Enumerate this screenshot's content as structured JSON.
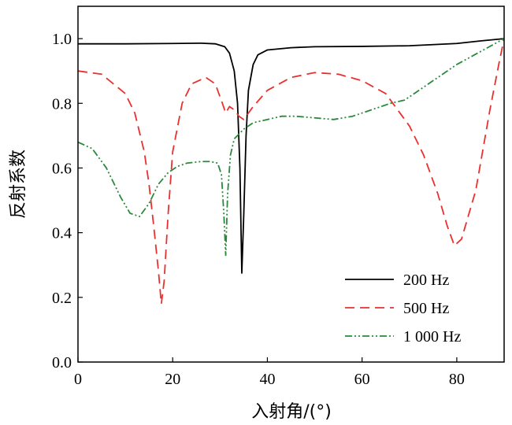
{
  "chart_data": {
    "type": "line",
    "xlabel": "入射角/(°)",
    "ylabel": "反射系数",
    "xlim": [
      0,
      90
    ],
    "ylim": [
      0,
      1.1
    ],
    "x_ticks": [
      0,
      20,
      40,
      60,
      80
    ],
    "x_tick_labels": [
      "0",
      "20",
      "40",
      "60",
      "80"
    ],
    "y_ticks": [
      0,
      0.2,
      0.4,
      0.6,
      0.8,
      1.0
    ],
    "y_tick_labels": [
      "0.0",
      "0.2",
      "0.4",
      "0.6",
      "0.8",
      "1.0"
    ],
    "grid": false,
    "legend_position": "bottom-right",
    "series": [
      {
        "name": "200 Hz",
        "color": "#000000",
        "dash": "solid",
        "x": [
          0,
          10,
          20,
          26,
          29,
          31,
          32,
          33,
          33.7,
          34.2,
          34.6,
          35.0,
          35.5,
          36,
          37,
          38,
          40,
          45,
          50,
          60,
          70,
          80,
          85,
          90
        ],
        "y": [
          0.984,
          0.984,
          0.985,
          0.986,
          0.984,
          0.975,
          0.955,
          0.9,
          0.8,
          0.6,
          0.275,
          0.45,
          0.7,
          0.84,
          0.92,
          0.95,
          0.965,
          0.972,
          0.975,
          0.976,
          0.978,
          0.985,
          0.993,
          1.0
        ]
      },
      {
        "name": "500 Hz",
        "color": "#e8312f",
        "dash": "dashed",
        "x": [
          0,
          5,
          10,
          12,
          14,
          15,
          16,
          17,
          17.6,
          18.2,
          19,
          20,
          22,
          24,
          27,
          29,
          30.5,
          31.2,
          32,
          33,
          34,
          35,
          37,
          40,
          45,
          50,
          55,
          60,
          65,
          70,
          73,
          76,
          78,
          79.5,
          81,
          84,
          87,
          89,
          90
        ],
        "y": [
          0.9,
          0.89,
          0.83,
          0.77,
          0.65,
          0.55,
          0.42,
          0.28,
          0.18,
          0.25,
          0.45,
          0.65,
          0.8,
          0.86,
          0.88,
          0.86,
          0.8,
          0.77,
          0.79,
          0.78,
          0.76,
          0.75,
          0.79,
          0.84,
          0.88,
          0.895,
          0.89,
          0.87,
          0.83,
          0.73,
          0.64,
          0.52,
          0.42,
          0.36,
          0.38,
          0.53,
          0.78,
          0.93,
          1.0
        ]
      },
      {
        "name": "1 000 Hz",
        "color": "#2a8a3a",
        "dash": "dashdot",
        "x": [
          0,
          3,
          6,
          9,
          11,
          13,
          15,
          17,
          19,
          21,
          23,
          26,
          28,
          29.5,
          30.3,
          30.8,
          31.2,
          31.6,
          32.2,
          33,
          35,
          37,
          40,
          43,
          46,
          50,
          54,
          58,
          62,
          66,
          69,
          72,
          76,
          80,
          85,
          90
        ],
        "y": [
          0.68,
          0.66,
          0.6,
          0.51,
          0.46,
          0.45,
          0.49,
          0.55,
          0.585,
          0.605,
          0.615,
          0.62,
          0.62,
          0.615,
          0.58,
          0.46,
          0.33,
          0.52,
          0.64,
          0.69,
          0.72,
          0.74,
          0.75,
          0.76,
          0.76,
          0.755,
          0.75,
          0.76,
          0.78,
          0.8,
          0.81,
          0.84,
          0.88,
          0.92,
          0.96,
          1.0
        ]
      }
    ]
  }
}
